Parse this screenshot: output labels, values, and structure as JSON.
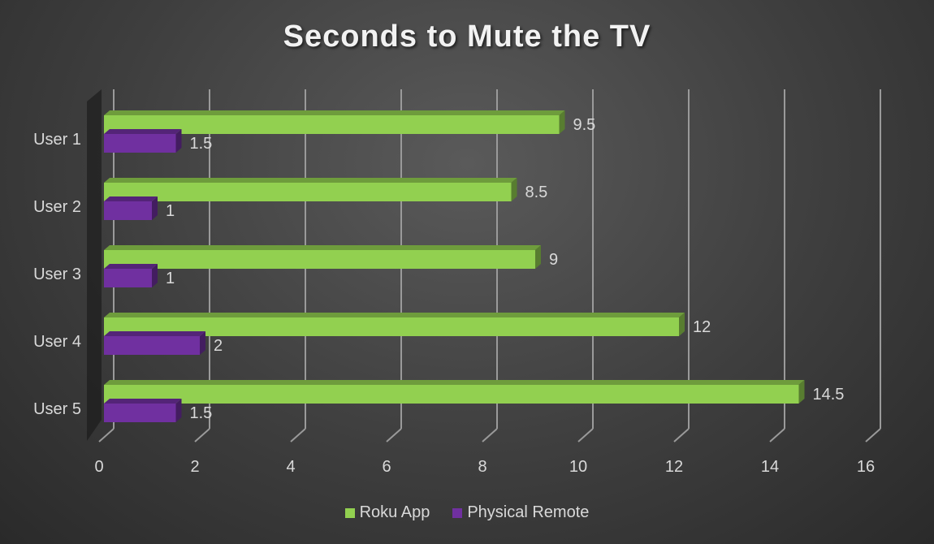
{
  "chart_data": {
    "type": "bar",
    "orientation": "horizontal",
    "title": "Seconds to Mute the TV",
    "categories": [
      "User 1",
      "User 2",
      "User 3",
      "User 4",
      "User 5"
    ],
    "series": [
      {
        "name": "Roku App",
        "color": "#92d050",
        "values": [
          9.5,
          8.5,
          9,
          12,
          14.5
        ]
      },
      {
        "name": "Physical Remote",
        "color": "#7030a0",
        "values": [
          1.5,
          1,
          1,
          2,
          1.5
        ]
      }
    ],
    "xlim": [
      0,
      16
    ],
    "xticks": [
      "0",
      "2",
      "4",
      "6",
      "8",
      "10",
      "12",
      "14",
      "16"
    ],
    "xlabel": "",
    "ylabel": "",
    "grid": true,
    "legend_position": "bottom",
    "style": "3d-bar"
  }
}
